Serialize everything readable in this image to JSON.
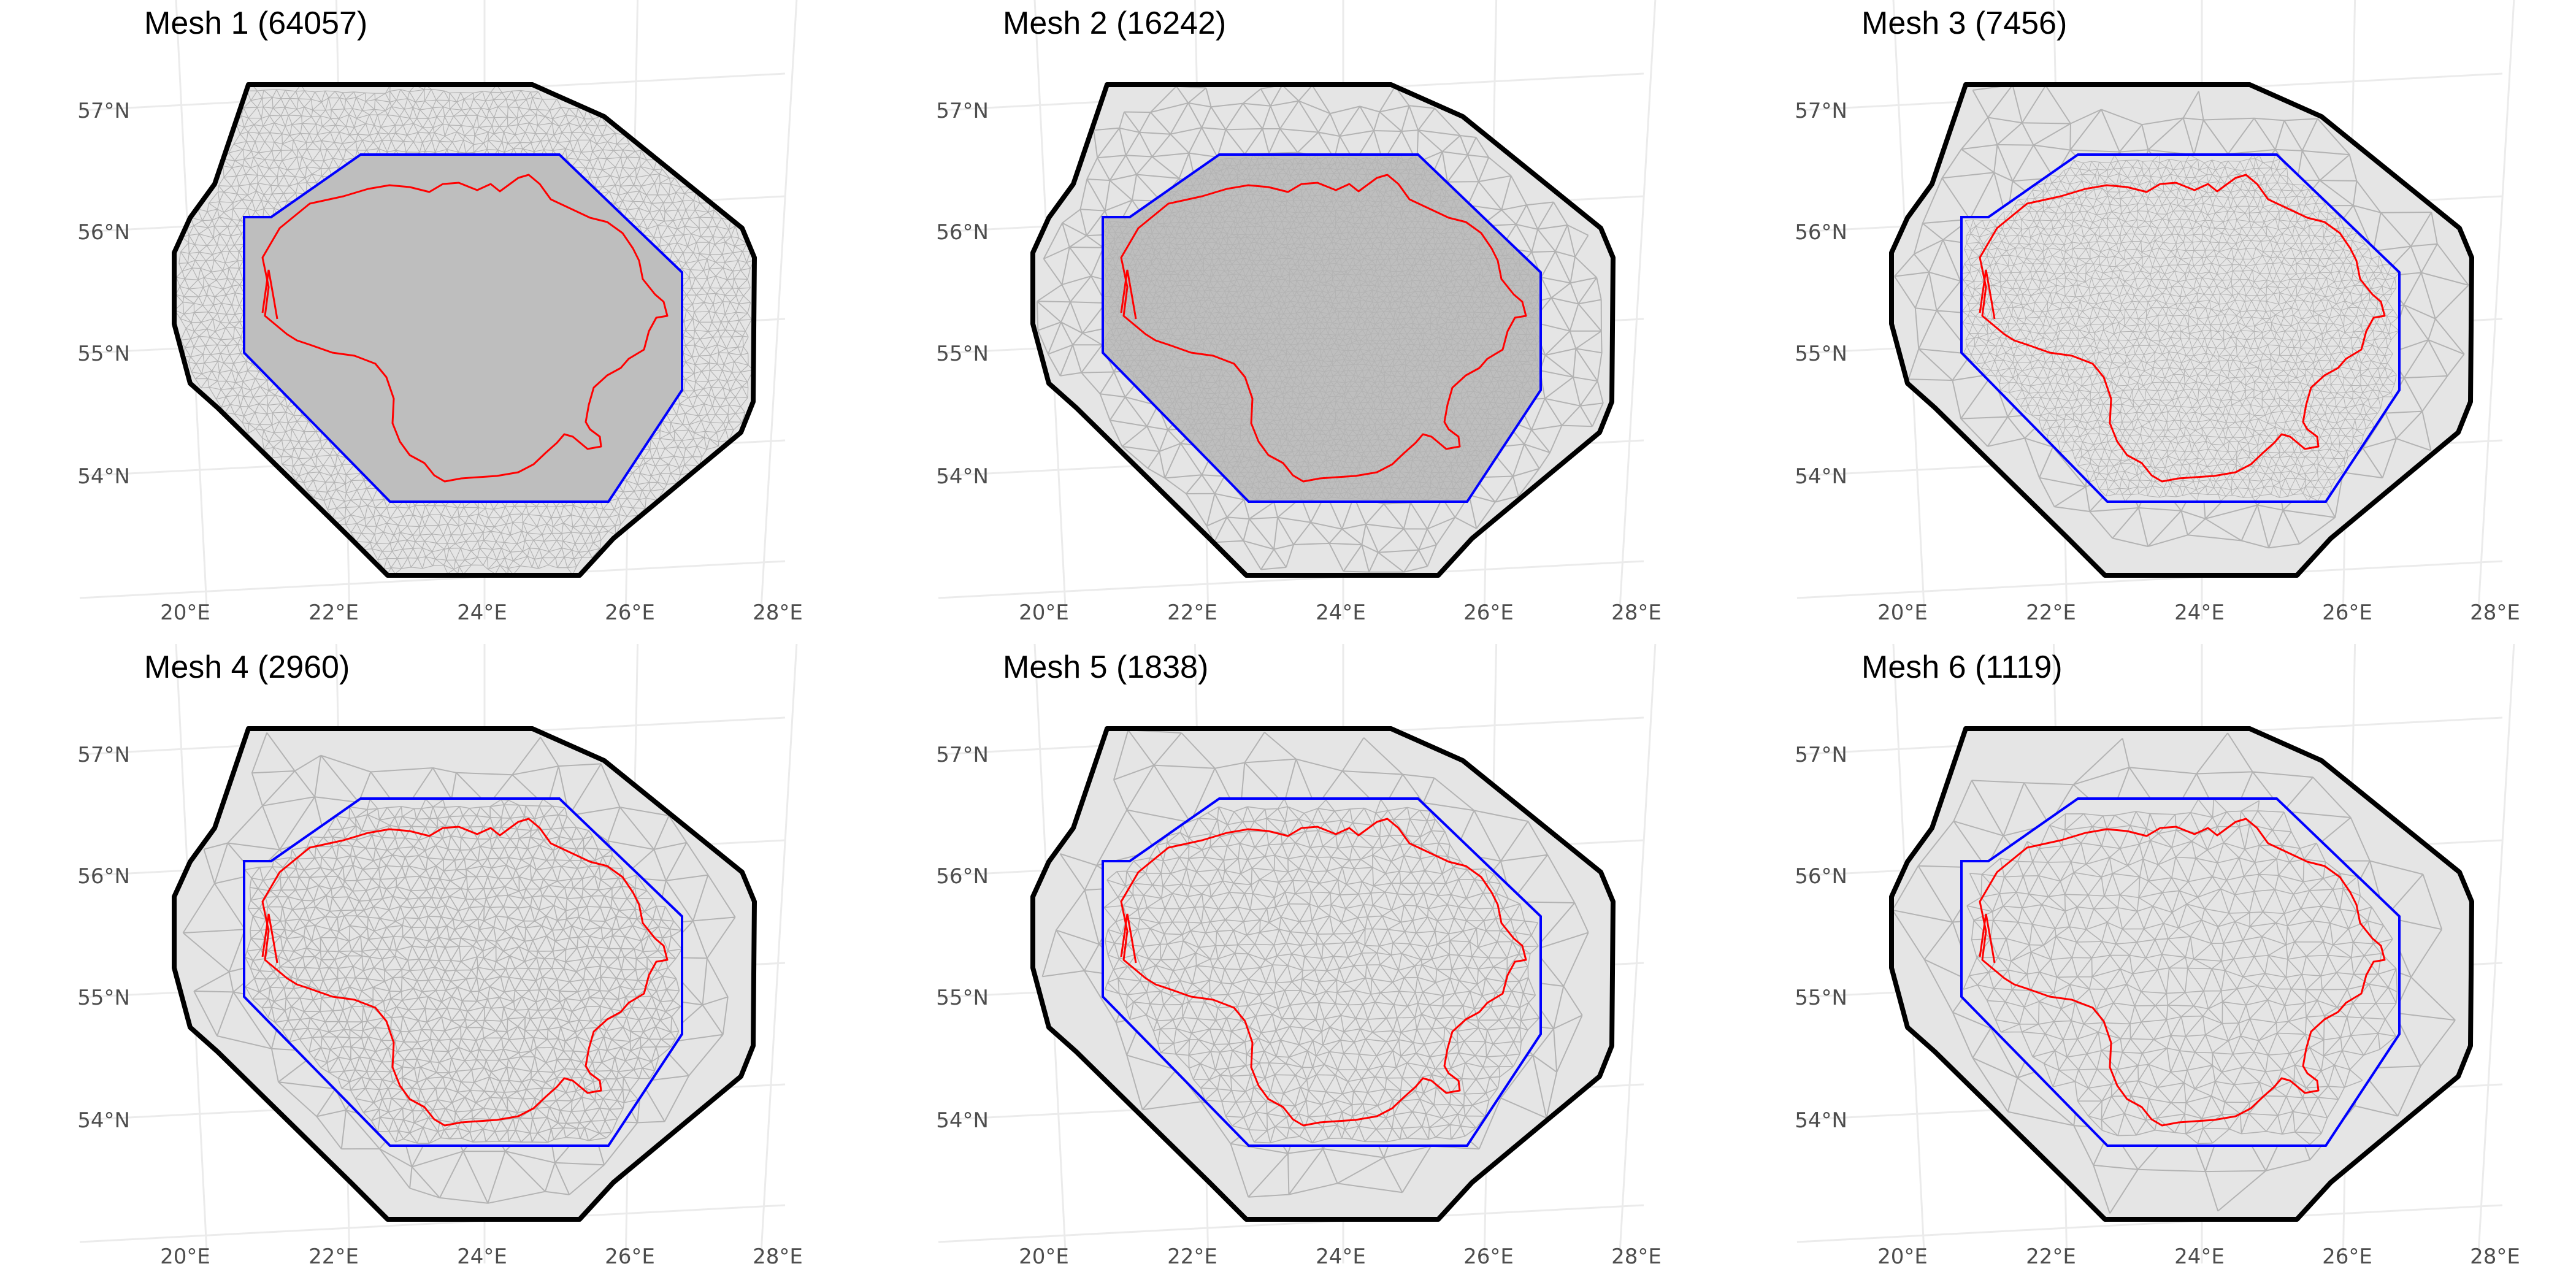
{
  "colors": {
    "background": "#ffffff",
    "graticule": "#ebebeb",
    "mesh_fill_dense": "#bebebe",
    "mesh_fill_light": "#e5e5e5",
    "mesh_edge": "#b3b3b3",
    "outer_boundary": "#000000",
    "inner_boundary": "#0000ff",
    "country_border": "#ff0000"
  },
  "axes": {
    "x_ticks": [
      "20°E",
      "22°E",
      "24°E",
      "26°E",
      "28°E"
    ],
    "y_ticks": [
      "57°N",
      "56°N",
      "55°N",
      "54°N"
    ]
  },
  "panels": [
    {
      "title": "Mesh 1 (64057)",
      "vertices": 64057
    },
    {
      "title": "Mesh 2 (16242)",
      "vertices": 16242
    },
    {
      "title": "Mesh 3 (7456)",
      "vertices": 7456
    },
    {
      "title": "Mesh 4 (2960)",
      "vertices": 2960
    },
    {
      "title": "Mesh 5 (1838)",
      "vertices": 1838
    },
    {
      "title": "Mesh 6 (1119)",
      "vertices": 1119
    }
  ]
}
